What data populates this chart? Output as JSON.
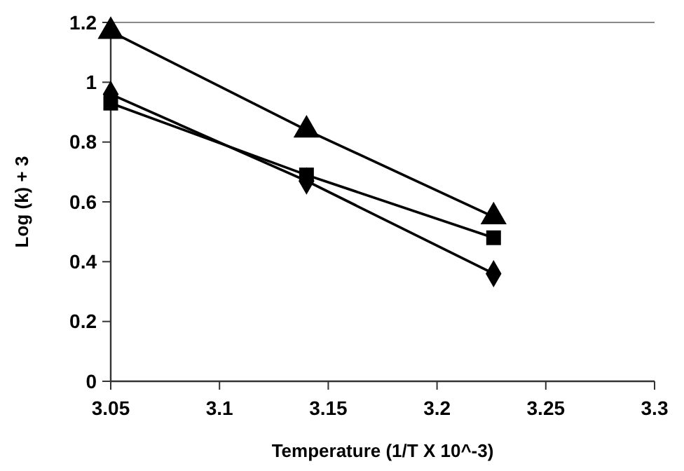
{
  "chart_data": {
    "type": "line",
    "xlabel": "Temperature (1/T X 10^-3)",
    "ylabel": "Log (k) + 3",
    "x": [
      3.05,
      3.14,
      3.226
    ],
    "series": [
      {
        "color": "#000000",
        "marker": "diamond",
        "values": [
          0.96,
          0.67,
          0.36
        ]
      },
      {
        "color": "#000000",
        "marker": "square",
        "values": [
          0.93,
          0.69,
          0.48
        ]
      },
      {
        "color": "#000000",
        "marker": "triangle",
        "values": [
          1.17,
          0.84,
          0.55
        ]
      }
    ],
    "xlim": [
      3.05,
      3.3
    ],
    "xticks": [
      3.05,
      3.1,
      3.15,
      3.2,
      3.25,
      3.3
    ],
    "ylim": [
      0,
      1.2
    ],
    "yticks": [
      0,
      0.2,
      0.4,
      0.6,
      0.8,
      1,
      1.2
    ],
    "grid": false,
    "line_style": "solid"
  }
}
